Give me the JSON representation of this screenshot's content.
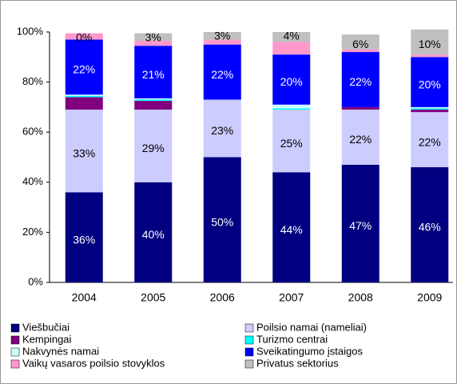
{
  "chart_data": {
    "type": "stacked_bar",
    "categories": [
      "2004",
      "2005",
      "2006",
      "2007",
      "2008",
      "2009"
    ],
    "ylim": [
      0,
      100
    ],
    "yticks": [
      {
        "value": 0,
        "label": "0%"
      },
      {
        "value": 20,
        "label": "20%"
      },
      {
        "value": 40,
        "label": "40%"
      },
      {
        "value": 60,
        "label": "60%"
      },
      {
        "value": 80,
        "label": "80%"
      },
      {
        "value": 100,
        "label": "100%"
      }
    ],
    "series": [
      {
        "name": "Viešbučiai",
        "color": "#000080",
        "values": [
          36,
          40,
          50,
          44,
          47,
          46
        ],
        "value_labels": [
          "36%",
          "40%",
          "50%",
          "44%",
          "47%",
          "46%"
        ]
      },
      {
        "name": "Poilsio namai (nameliai)",
        "color": "#ccccff",
        "values": [
          33,
          29,
          23,
          25,
          22,
          22
        ],
        "value_labels": [
          "33%",
          "29%",
          "23%",
          "25%",
          "22%",
          "22%"
        ]
      },
      {
        "name": "Kempingai",
        "color": "#800080",
        "values": [
          5,
          3.5,
          0,
          0,
          1,
          1
        ]
      },
      {
        "name": "Turizmo centrai",
        "color": "#00ffff",
        "values": [
          0.5,
          0.5,
          0,
          0.5,
          0,
          0.5
        ]
      },
      {
        "name": "Nakvynės namai",
        "color": "#ccffff",
        "values": [
          0.5,
          0.5,
          0,
          1.5,
          0,
          0.5
        ]
      },
      {
        "name": "Sveikatingumo įstaigos",
        "color": "#0000ff",
        "values": [
          22,
          21,
          22,
          20,
          22,
          20
        ],
        "value_labels": [
          "22%",
          "21%",
          "22%",
          "20%",
          "22%",
          "20%"
        ]
      },
      {
        "name": "Vaikų vasaros poilsio stovyklos",
        "color": "#ff99cc",
        "values": [
          2.5,
          2,
          2,
          5,
          1,
          1
        ]
      },
      {
        "name": "Privatus sektorius",
        "color": "#c0c0c0",
        "values": [
          0,
          3,
          3,
          4,
          6,
          10
        ],
        "value_labels": [
          "0%",
          "3%",
          "3%",
          "4%",
          "6%",
          "10%"
        ]
      }
    ]
  }
}
